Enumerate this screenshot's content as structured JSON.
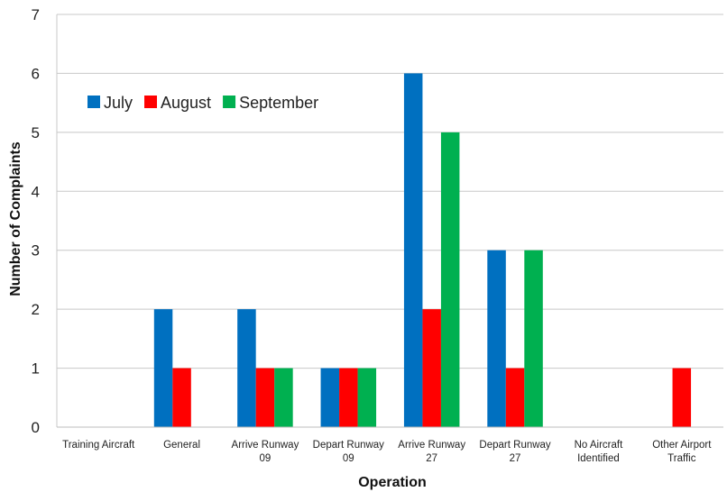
{
  "chart_data": {
    "type": "bar",
    "title": "",
    "xlabel": "Operation",
    "ylabel": "Number of Complaints",
    "ylim": [
      0,
      7
    ],
    "yticks": [
      0,
      1,
      2,
      3,
      4,
      5,
      6,
      7
    ],
    "grid": true,
    "legend_position": "top-left",
    "categories": [
      [
        "Training Aircraft"
      ],
      [
        "General"
      ],
      [
        "Arrive Runway",
        "09"
      ],
      [
        "Depart Runway",
        "09"
      ],
      [
        "Arrive Runway",
        "27"
      ],
      [
        "Depart Runway",
        "27"
      ],
      [
        "No Aircraft",
        "Identified"
      ],
      [
        "Other Airport",
        "Traffic"
      ]
    ],
    "series": [
      {
        "name": "July",
        "color": "#0070C0",
        "values": [
          0,
          2,
          2,
          1,
          6,
          3,
          0,
          0
        ]
      },
      {
        "name": "August",
        "color": "#FF0000",
        "values": [
          0,
          1,
          1,
          1,
          2,
          1,
          0,
          1
        ]
      },
      {
        "name": "September",
        "color": "#00B050",
        "values": [
          0,
          0,
          1,
          1,
          5,
          3,
          0,
          0
        ]
      }
    ]
  }
}
